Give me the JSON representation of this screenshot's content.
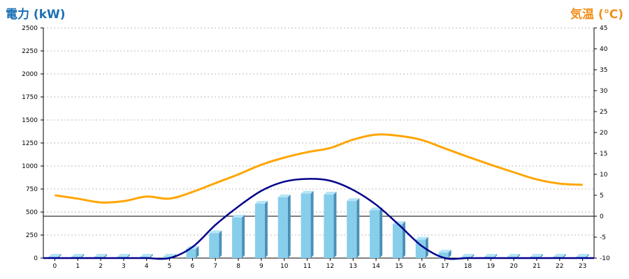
{
  "chart_data": {
    "type": "bar",
    "left_axis_title": "電力 (kW)",
    "right_axis_title": "気温 (℃)",
    "colors": {
      "bar_face": "#87ceeb",
      "bar_side": "#4a90b8",
      "bar_top": "#b4e4f6",
      "curve": "#00008b",
      "temperature": "#ffa500",
      "left_title": "#1a6fb5",
      "right_title": "#f0901a"
    },
    "left_ylim": [
      0,
      2500
    ],
    "left_yticks": [
      0,
      250,
      500,
      750,
      1000,
      1250,
      1500,
      1750,
      2000,
      2250,
      2500
    ],
    "right_ylim": [
      -10,
      45
    ],
    "right_yticks": [
      -10,
      -5,
      0,
      5,
      10,
      15,
      20,
      25,
      30,
      35,
      40,
      45
    ],
    "categories": [
      "0",
      "1",
      "2",
      "3",
      "4",
      "5",
      "6",
      "7",
      "8",
      "9",
      "10",
      "11",
      "12",
      "13",
      "14",
      "15",
      "16",
      "17",
      "18",
      "19",
      "20",
      "21",
      "22",
      "23"
    ],
    "grid": true,
    "series": [
      {
        "kind": "bar",
        "axis": "left",
        "values": [
          0,
          0,
          0,
          0,
          0,
          0,
          100,
          270,
          440,
          590,
          660,
          700,
          690,
          620,
          520,
          370,
          200,
          60,
          0,
          0,
          0,
          0,
          0,
          0
        ]
      },
      {
        "kind": "line",
        "axis": "left",
        "values": [
          0,
          0,
          0,
          0,
          0,
          0,
          120,
          360,
          560,
          730,
          830,
          860,
          840,
          740,
          580,
          360,
          130,
          0,
          0,
          0,
          0,
          0,
          0,
          0
        ]
      },
      {
        "kind": "line",
        "axis": "right",
        "values": [
          5,
          4.2,
          3.3,
          3.6,
          4.7,
          4.2,
          5.8,
          7.9,
          10,
          12.3,
          14,
          15.3,
          16.3,
          18.3,
          19.5,
          19.2,
          18.2,
          16.2,
          14.2,
          12.3,
          10.5,
          8.8,
          7.8,
          7.5
        ]
      }
    ]
  }
}
